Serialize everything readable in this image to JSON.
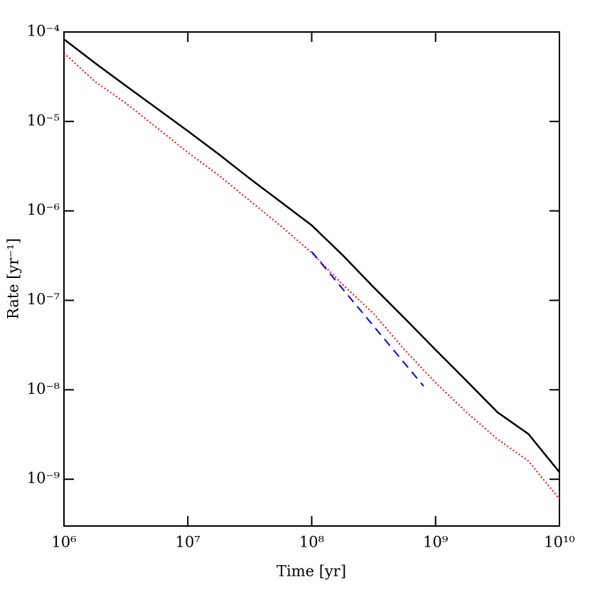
{
  "chart_data": {
    "type": "line",
    "xlabel": "Time [yr]",
    "ylabel": "Rate [yr⁻¹]",
    "xscale": "log",
    "yscale": "log",
    "xlim": [
      1000000,
      10000000000
    ],
    "ylim": [
      3e-10,
      0.0001
    ],
    "xticks": [
      {
        "value": 1000000,
        "label": "10⁶"
      },
      {
        "value": 10000000,
        "label": "10⁷"
      },
      {
        "value": 100000000,
        "label": "10⁸"
      },
      {
        "value": 1000000000,
        "label": "10⁹"
      },
      {
        "value": 10000000000,
        "label": "10¹⁰"
      }
    ],
    "yticks": [
      {
        "value": 1e-09,
        "label": "10⁻⁹"
      },
      {
        "value": 1e-08,
        "label": "10⁻⁸"
      },
      {
        "value": 1e-07,
        "label": "10⁻⁷"
      },
      {
        "value": 1e-06,
        "label": "10⁻⁶"
      },
      {
        "value": 1e-05,
        "label": "10⁻⁵"
      },
      {
        "value": 0.0001,
        "label": "10⁻⁴"
      }
    ],
    "series": [
      {
        "color": "#000000",
        "style": "solid",
        "x": [
          1000000,
          1778000,
          3162000,
          5623000,
          10000000,
          17780000,
          31620000,
          56230000,
          100000000,
          177800000,
          316200000,
          562300000,
          1000000000,
          1778000000,
          3162000000,
          5623000000,
          10000000000
        ],
        "values": [
          8.3e-05,
          4.5e-05,
          2.5e-05,
          1.4e-05,
          7.8e-06,
          4.3e-06,
          2.3e-06,
          1.26e-06,
          6.9e-07,
          3.2e-07,
          1.4e-07,
          6.3e-08,
          2.8e-08,
          1.26e-08,
          5.6e-09,
          3.2e-09,
          1.2e-09
        ]
      },
      {
        "color": "#ff0000",
        "style": "dotted",
        "x": [
          1000000,
          1778000,
          3162000,
          5623000,
          10000000,
          17780000,
          31620000,
          56230000,
          100000000,
          177800000,
          316200000,
          562300000,
          1000000000,
          1778000000,
          3162000000,
          5623000000,
          10000000000
        ],
        "values": [
          5.8e-05,
          2.8e-05,
          1.6e-05,
          8.5e-06,
          4.5e-06,
          2.5e-06,
          1.3e-06,
          6.8e-07,
          3.4e-07,
          1.5e-07,
          7.1e-08,
          2.8e-08,
          1.2e-08,
          5.6e-09,
          2.8e-09,
          1.6e-09,
          6e-10
        ]
      },
      {
        "color": "#0000ff",
        "style": "dashed",
        "x": [
          100000000,
          800000000
        ],
        "values": [
          3.5e-07,
          1.1e-08
        ]
      }
    ]
  }
}
